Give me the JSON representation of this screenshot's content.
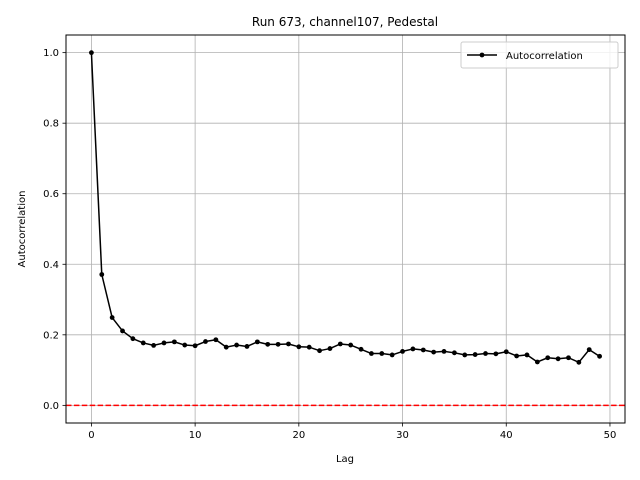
{
  "chart_data": {
    "type": "line",
    "title": "Run 673, channel107, Pedestal",
    "xlabel": "Lag",
    "ylabel": "Autocorrelation",
    "xlim": [
      -2.45,
      51.45
    ],
    "ylim": [
      -0.05,
      1.05
    ],
    "xticks": [
      0,
      10,
      20,
      30,
      40,
      50
    ],
    "yticks": [
      0.0,
      0.2,
      0.4,
      0.6,
      0.8,
      1.0
    ],
    "xtick_labels": [
      "0",
      "10",
      "20",
      "30",
      "40",
      "50"
    ],
    "ytick_labels": [
      "0.0",
      "0.2",
      "0.4",
      "0.6",
      "0.8",
      "1.0"
    ],
    "grid": true,
    "legend_position": "top-right",
    "series": [
      {
        "name": "Autocorrelation",
        "color": "#000000",
        "marker": "circle",
        "x": [
          0,
          1,
          2,
          3,
          4,
          5,
          6,
          7,
          8,
          9,
          10,
          11,
          12,
          13,
          14,
          15,
          16,
          17,
          18,
          19,
          20,
          21,
          22,
          23,
          24,
          25,
          26,
          27,
          28,
          29,
          30,
          31,
          32,
          33,
          34,
          35,
          36,
          37,
          38,
          39,
          40,
          41,
          42,
          43,
          44,
          45,
          46,
          47,
          48,
          49
        ],
        "values": [
          1.0,
          0.371,
          0.249,
          0.211,
          0.189,
          0.177,
          0.17,
          0.177,
          0.18,
          0.171,
          0.169,
          0.181,
          0.186,
          0.165,
          0.171,
          0.167,
          0.18,
          0.173,
          0.173,
          0.174,
          0.166,
          0.165,
          0.155,
          0.161,
          0.174,
          0.171,
          0.159,
          0.147,
          0.147,
          0.143,
          0.153,
          0.16,
          0.157,
          0.151,
          0.153,
          0.149,
          0.143,
          0.144,
          0.147,
          0.146,
          0.152,
          0.14,
          0.143,
          0.123,
          0.135,
          0.132,
          0.135,
          0.122,
          0.158,
          0.139
        ]
      }
    ],
    "reference_line": {
      "y": 0.0,
      "color": "#ff0000",
      "style": "dashed"
    }
  }
}
